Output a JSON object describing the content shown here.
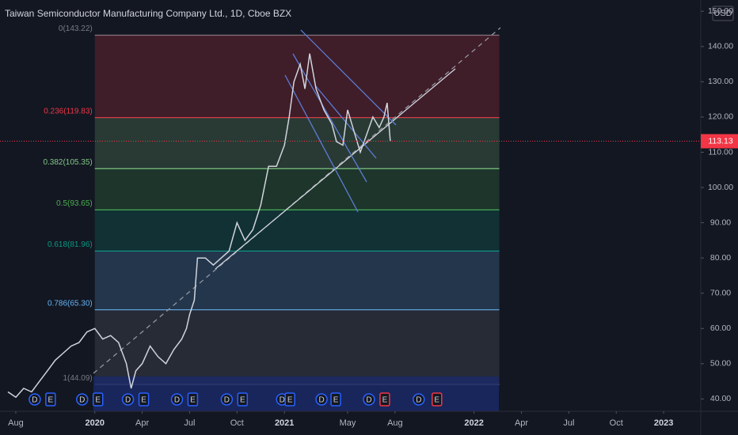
{
  "chart_data": {
    "type": "line",
    "title": "Taiwan Semiconductor Manufacturing Company Ltd., 1D, Cboe BZX",
    "currency": "USD",
    "current_price": 113.13,
    "color": "#d1d4dc",
    "x": [
      -5.5,
      -5,
      -4.5,
      -4,
      -3.5,
      -3,
      -2.5,
      -2,
      -1.5,
      -1,
      -0.5,
      0,
      0.5,
      1,
      1.5,
      2,
      2.3,
      2.6,
      3,
      3.5,
      4,
      4.5,
      5,
      5.5,
      5.8,
      6,
      6.3,
      6.5,
      7,
      7.5,
      8,
      8.5,
      9,
      9.5,
      10,
      10.5,
      11,
      11.5,
      12,
      12.3,
      12.6,
      13,
      13.3,
      13.6,
      14,
      14.5,
      15,
      15.3,
      15.7,
      16,
      16.4,
      16.8,
      17.2,
      17.6,
      18,
      18.3,
      18.5,
      18.7
    ],
    "values": [
      42,
      40.5,
      43,
      42,
      45,
      48,
      51,
      53,
      55,
      56,
      59,
      60,
      57,
      58,
      56,
      50,
      43,
      48,
      50,
      55,
      52,
      50,
      54,
      57,
      60,
      64,
      68,
      80,
      80,
      78,
      80,
      82,
      90,
      85,
      88,
      95,
      106,
      106,
      112,
      120,
      130,
      135,
      128,
      138,
      128,
      122,
      118,
      113,
      112,
      122,
      116,
      110,
      115,
      120,
      117,
      120,
      124,
      113.13
    ],
    "xlim": [
      -6,
      38.35
    ],
    "ylim": [
      36.5,
      153.2
    ],
    "xticks": [
      {
        "value": -5,
        "label": "Aug"
      },
      {
        "value": 0,
        "label": "2020"
      },
      {
        "value": 3,
        "label": "Apr"
      },
      {
        "value": 6,
        "label": "Jul"
      },
      {
        "value": 9,
        "label": "Oct"
      },
      {
        "value": 12,
        "label": "2021"
      },
      {
        "value": 16,
        "label": "May"
      },
      {
        "value": 19,
        "label": "Aug"
      },
      {
        "value": 24,
        "label": "2022"
      },
      {
        "value": 27,
        "label": "Apr"
      },
      {
        "value": 30,
        "label": "Jul"
      },
      {
        "value": 33,
        "label": "Oct"
      },
      {
        "value": 36,
        "label": "2023"
      }
    ],
    "yticks": [
      {
        "value": 40,
        "label": "40.00"
      },
      {
        "value": 50,
        "label": "50.00"
      },
      {
        "value": 60,
        "label": "60.00"
      },
      {
        "value": 70,
        "label": "70.00"
      },
      {
        "value": 80,
        "label": "80.00"
      },
      {
        "value": 90,
        "label": "90.00"
      },
      {
        "value": 100,
        "label": "100.00"
      },
      {
        "value": 110,
        "label": "110.00"
      },
      {
        "value": 120,
        "label": "120.00"
      },
      {
        "value": 130,
        "label": "130.00"
      },
      {
        "value": 140,
        "label": "140.00"
      },
      {
        "value": 150,
        "label": "150.00"
      }
    ],
    "fib_levels": [
      {
        "label": "0(143.22)",
        "value": 143.22,
        "color": "#787b86"
      },
      {
        "label": "0.236(119.83)",
        "value": 119.83,
        "color": "#f23645"
      },
      {
        "label": "0.382(105.35)",
        "value": 105.35,
        "color": "#81c784"
      },
      {
        "label": "0.5(93.65)",
        "value": 93.65,
        "color": "#4caf50"
      },
      {
        "label": "0.618(81.96)",
        "value": 81.96,
        "color": "#089981"
      },
      {
        "label": "0.786(65.30)",
        "value": 65.3,
        "color": "#64b5f6"
      },
      {
        "label": "1(44.09)",
        "value": 44.09,
        "color": "#787b86"
      }
    ],
    "fib_start": 0,
    "fib_end": 25.6,
    "events": [
      {
        "label": "D",
        "x": -3.8,
        "color": "#2962ff"
      },
      {
        "label": "E",
        "x": -2.8,
        "color": "#2962ff"
      },
      {
        "label": "D",
        "x": -0.8,
        "color": "#2962ff"
      },
      {
        "label": "E",
        "x": 0.2,
        "color": "#2962ff"
      },
      {
        "label": "D",
        "x": 2.1,
        "color": "#2962ff"
      },
      {
        "label": "E",
        "x": 3.1,
        "color": "#2962ff"
      },
      {
        "label": "D",
        "x": 5.2,
        "color": "#2962ff"
      },
      {
        "label": "E",
        "x": 6.2,
        "color": "#2962ff"
      },
      {
        "label": "D",
        "x": 8.35,
        "color": "#2962ff"
      },
      {
        "label": "E",
        "x": 9.35,
        "color": "#2962ff"
      },
      {
        "label": "D",
        "x": 11.85,
        "color": "#2962ff"
      },
      {
        "label": "E",
        "x": 12.35,
        "color": "#2962ff"
      },
      {
        "label": "D",
        "x": 14.35,
        "color": "#2962ff"
      },
      {
        "label": "E",
        "x": 15.25,
        "color": "#2962ff"
      },
      {
        "label": "D",
        "x": 17.35,
        "color": "#2962ff"
      },
      {
        "label": "E",
        "x": 18.35,
        "color": "#f23645"
      },
      {
        "label": "D",
        "x": 20.5,
        "color": "#2962ff"
      },
      {
        "label": "E",
        "x": 21.65,
        "color": "#f23645"
      }
    ]
  }
}
